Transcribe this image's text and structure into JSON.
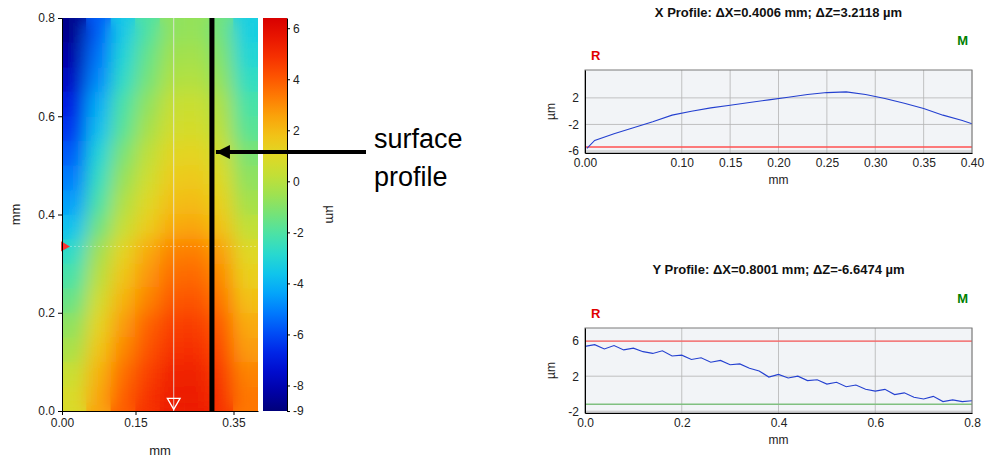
{
  "chart_data": [
    {
      "type": "heatmap",
      "x_label": "mm",
      "y_label": "mm",
      "xlim": [
        0,
        0.4
      ],
      "ylim": [
        0,
        0.8
      ],
      "xticks": [
        {
          "value": 0,
          "label": "0.00"
        },
        0.15,
        0.35
      ],
      "yticks": [
        {
          "value": 0,
          "label": "0.0"
        },
        0.2,
        0.4,
        0.6,
        0.8
      ],
      "x": [
        0.025,
        0.075,
        0.125,
        0.175,
        0.225,
        0.275,
        0.325,
        0.375
      ],
      "y": [
        0.025,
        0.075,
        0.125,
        0.175,
        0.225,
        0.275,
        0.325,
        0.375,
        0.425,
        0.475,
        0.525,
        0.575,
        0.625,
        0.675,
        0.725,
        0.775
      ],
      "z": [
        [
          0.8,
          2.5,
          3.9,
          4.8,
          5.4,
          5.5,
          4.8,
          3.4
        ],
        [
          0.4,
          2.2,
          3.6,
          4.5,
          5.2,
          5.3,
          4.6,
          3.2
        ],
        [
          -0.3,
          1.7,
          3.1,
          4.1,
          4.8,
          4.9,
          4.2,
          2.7
        ],
        [
          -0.8,
          1.2,
          2.7,
          3.8,
          4.5,
          4.6,
          3.9,
          2.4
        ],
        [
          -1.5,
          0.6,
          2.2,
          3.2,
          4.0,
          4.1,
          3.4,
          1.9
        ],
        [
          -2.1,
          0.0,
          1.7,
          2.8,
          3.6,
          3.7,
          3.0,
          1.4
        ],
        [
          -2.7,
          -0.5,
          1.2,
          2.4,
          3.2,
          3.3,
          2.6,
          1.0
        ],
        [
          -3.7,
          -1.4,
          0.3,
          1.5,
          2.4,
          2.5,
          1.8,
          0.2
        ],
        [
          -4.5,
          -2.1,
          -0.2,
          1.0,
          1.9,
          2.0,
          1.3,
          -0.4
        ],
        [
          -5.1,
          -2.6,
          -0.7,
          0.5,
          1.5,
          1.6,
          0.9,
          -0.8
        ],
        [
          -5.7,
          -3.1,
          -1.2,
          0.1,
          1.1,
          1.2,
          0.5,
          -1.2
        ],
        [
          -6.4,
          -3.8,
          -1.8,
          -0.4,
          0.6,
          0.7,
          0.0,
          -1.8
        ],
        [
          -6.9,
          -4.2,
          -2.1,
          -0.8,
          0.3,
          0.4,
          -0.3,
          -2.1
        ],
        [
          -7.7,
          -4.9,
          -2.7,
          -1.3,
          -0.2,
          -0.1,
          -0.8,
          -2.6
        ],
        [
          -8.2,
          -5.3,
          -3.1,
          -1.6,
          -0.5,
          -0.4,
          -1.1,
          -3.0
        ],
        [
          -8.7,
          -5.7,
          -3.5,
          -2.0,
          -0.8,
          -0.7,
          -1.4,
          -3.3
        ]
      ],
      "colorbar": {
        "label": "µm",
        "range": [
          -9,
          6.4
        ],
        "ticks": [
          6,
          4,
          2,
          0,
          -2,
          -4,
          -6,
          -8,
          -9
        ]
      },
      "x_profile_at": 0.335,
      "y_profile_at": 0.228,
      "annotation": {
        "text": "surface profile",
        "x": 0.306
      }
    },
    {
      "type": "line",
      "title": "X Profile: ΔX=0.4006 mm; ΔZ=3.2118 µm",
      "x_label": "mm",
      "y_label": "µm",
      "corner_labels": [
        {
          "text": "R",
          "color": "#e00000"
        },
        {
          "text": "M",
          "color": "#008000"
        }
      ],
      "xlim": [
        0,
        0.4
      ],
      "ylim": [
        -6.3,
        6.2
      ],
      "xticks": [
        {
          "value": 0,
          "label": "0.00"
        },
        {
          "value": 0.1,
          "label": "0.10"
        },
        0.15,
        {
          "value": 0.2,
          "label": "0.20"
        },
        0.25,
        {
          "value": 0.3,
          "label": "0.30"
        },
        0.35,
        {
          "value": 0.4,
          "label": "0.40"
        }
      ],
      "yticks": [
        2,
        -2,
        -6
      ],
      "grid": true,
      "color": "#2440d0",
      "ref_lines": [
        {
          "value": -5.4,
          "color": "#ff5050"
        }
      ],
      "x": [
        0.002,
        0.01,
        0.03,
        0.05,
        0.07,
        0.09,
        0.11,
        0.13,
        0.15,
        0.17,
        0.19,
        0.21,
        0.23,
        0.25,
        0.27,
        0.29,
        0.31,
        0.33,
        0.35,
        0.37,
        0.39,
        0.4
      ],
      "values": [
        -5.6,
        -4.4,
        -3.4,
        -2.5,
        -1.6,
        -0.6,
        0.0,
        0.5,
        0.9,
        1.3,
        1.7,
        2.1,
        2.5,
        2.8,
        2.9,
        2.5,
        1.9,
        1.2,
        0.4,
        -0.6,
        -1.4,
        -1.9
      ]
    },
    {
      "type": "line",
      "title": "Y Profile: ΔX=0.8001 mm; ΔZ=-6.6474 µm",
      "x_label": "mm",
      "y_label": "µm",
      "corner_labels": [
        {
          "text": "R",
          "color": "#e00000"
        },
        {
          "text": "M",
          "color": "#008000"
        }
      ],
      "xlim": [
        0,
        0.8
      ],
      "ylim": [
        -2.2,
        7.5
      ],
      "xticks": [
        {
          "value": 0,
          "label": "0.0"
        },
        0.2,
        0.4,
        0.6,
        0.8
      ],
      "yticks": [
        6,
        2,
        -2
      ],
      "grid": true,
      "color": "#2440d0",
      "ref_lines": [
        {
          "value": 6,
          "color": "#ff6060"
        },
        {
          "value": -1.2,
          "color": "#80c080"
        }
      ],
      "x": [
        0,
        0.02,
        0.04,
        0.06,
        0.08,
        0.1,
        0.12,
        0.14,
        0.16,
        0.18,
        0.2,
        0.22,
        0.24,
        0.26,
        0.28,
        0.3,
        0.32,
        0.34,
        0.36,
        0.38,
        0.4,
        0.42,
        0.44,
        0.46,
        0.48,
        0.5,
        0.52,
        0.54,
        0.56,
        0.58,
        0.6,
        0.62,
        0.64,
        0.66,
        0.68,
        0.7,
        0.72,
        0.74,
        0.76,
        0.78,
        0.8
      ],
      "values": [
        5.4,
        5.6,
        5.1,
        5.5,
        5.0,
        5.2,
        4.8,
        4.6,
        4.9,
        4.3,
        4.4,
        3.9,
        4.1,
        3.6,
        3.8,
        3.3,
        3.4,
        2.9,
        2.6,
        1.9,
        2.2,
        1.8,
        2.0,
        1.5,
        1.6,
        1.1,
        1.3,
        0.8,
        1.0,
        0.5,
        0.3,
        0.5,
        -0.1,
        0.1,
        -0.4,
        -0.6,
        -0.3,
        -0.9,
        -0.7,
        -0.9,
        -0.8
      ]
    }
  ]
}
